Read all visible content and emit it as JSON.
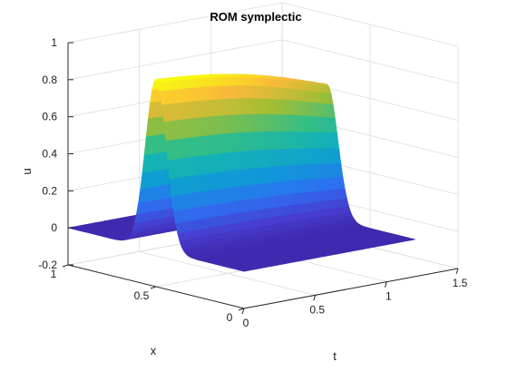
{
  "chart_data": {
    "type": "surface",
    "title": "ROM symplectic",
    "xlabel": "t",
    "ylabel": "x",
    "zlabel": "u",
    "xlim": [
      0,
      1.5
    ],
    "ylim": [
      0,
      1
    ],
    "zlim": [
      -0.2,
      1
    ],
    "x_ticks": [
      "0",
      "0.5",
      "1",
      "1.5"
    ],
    "y_ticks": [
      "0",
      "0.5",
      "1"
    ],
    "z_ticks": [
      "-0.2",
      "0",
      "0.2",
      "0.4",
      "0.6",
      "0.8",
      "1"
    ],
    "grid": true,
    "colormap": "parula",
    "t_extent": [
      0,
      1.2
    ],
    "pulse": {
      "initial_center_x": 0.5,
      "width": 0.06,
      "peak_start": 0.92,
      "peak_end": 0.72,
      "speed": 0
    }
  }
}
